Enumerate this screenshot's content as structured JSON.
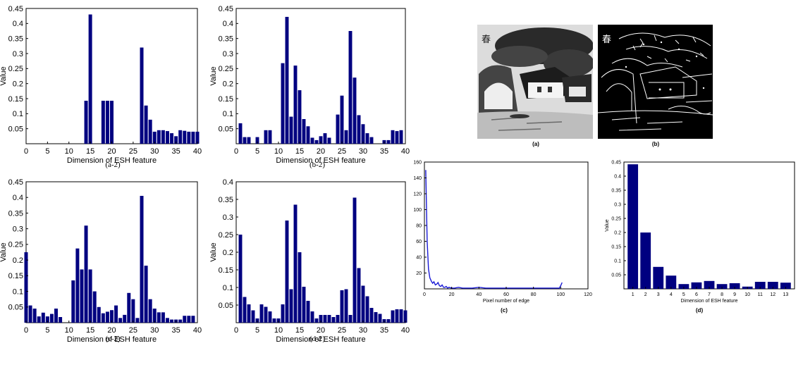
{
  "colors": {
    "bar": "#000080",
    "line": "#1a1ad6",
    "axis": "#000000"
  },
  "captions": {
    "a2": "(a-2)",
    "b2": "(b-2)",
    "c2": "(c-2)",
    "d2": "(d-2)",
    "a": "(a)",
    "b": "(b)",
    "c": "(c)",
    "d": "(d)"
  },
  "photo_a": {
    "stamp": "春"
  },
  "photo_b": {
    "stamp": "春"
  },
  "chart_data": [
    {
      "id": "a2",
      "type": "bar",
      "xlabel": "Dimension of ESH feature",
      "ylabel": "Value",
      "xlim": [
        0,
        40
      ],
      "ylim": [
        0,
        0.45
      ],
      "xticks": [
        0,
        5,
        10,
        15,
        20,
        25,
        30,
        35,
        40
      ],
      "yticks": [
        "0.05",
        "0.1",
        "0.15",
        "0.2",
        "0.25",
        "0.3",
        "0.35",
        "0.4",
        "0.45"
      ],
      "x": [
        1,
        2,
        3,
        4,
        5,
        6,
        7,
        8,
        9,
        10,
        11,
        12,
        13,
        14,
        15,
        16,
        17,
        18,
        19,
        20,
        21,
        22,
        23,
        24,
        25,
        26,
        27,
        28,
        29,
        30,
        31,
        32,
        33,
        34,
        35,
        36,
        37,
        38,
        39,
        40
      ],
      "values": [
        0,
        0,
        0,
        0,
        0,
        0,
        0,
        0,
        0,
        0,
        0,
        0,
        0,
        0.143,
        0.43,
        0,
        0,
        0.143,
        0.143,
        0.143,
        0,
        0,
        0,
        0,
        0,
        0,
        0.32,
        0.127,
        0.08,
        0.04,
        0.045,
        0.045,
        0.042,
        0.035,
        0.025,
        0.045,
        0.043,
        0.04,
        0.04,
        0.04
      ]
    },
    {
      "id": "b2",
      "type": "bar",
      "xlabel": "Dimension of ESH feature",
      "ylabel": "Value",
      "xlim": [
        0,
        40
      ],
      "ylim": [
        0,
        0.45
      ],
      "xticks": [
        0,
        5,
        10,
        15,
        20,
        25,
        30,
        35,
        40
      ],
      "yticks": [
        "0.05",
        "0.1",
        "0.15",
        "0.2",
        "0.25",
        "0.3",
        "0.35",
        "0.4",
        "0.45"
      ],
      "x": [
        1,
        2,
        3,
        4,
        5,
        6,
        7,
        8,
        9,
        10,
        11,
        12,
        13,
        14,
        15,
        16,
        17,
        18,
        19,
        20,
        21,
        22,
        23,
        24,
        25,
        26,
        27,
        28,
        29,
        30,
        31,
        32,
        33,
        34,
        35,
        36,
        37,
        38,
        39,
        40
      ],
      "values": [
        0.068,
        0.022,
        0.022,
        0,
        0.022,
        0,
        0.045,
        0.045,
        0,
        0,
        0.268,
        0.422,
        0.09,
        0.26,
        0.178,
        0.082,
        0.058,
        0.02,
        0.012,
        0.025,
        0.035,
        0.02,
        0,
        0.097,
        0.16,
        0.045,
        0.375,
        0.22,
        0.095,
        0.065,
        0.035,
        0.022,
        0,
        0,
        0.012,
        0.012,
        0.045,
        0.042,
        0.045,
        0
      ]
    },
    {
      "id": "c2",
      "type": "bar",
      "xlabel": "Dimension of ESH feature",
      "ylabel": "Value",
      "xlim": [
        0,
        40
      ],
      "ylim": [
        0,
        0.45
      ],
      "xticks": [
        0,
        5,
        10,
        15,
        20,
        25,
        30,
        35,
        40
      ],
      "yticks": [
        "0.05",
        "0.1",
        "0.15",
        "0.2",
        "0.25",
        "0.3",
        "0.35",
        "0.4",
        "0.45"
      ],
      "x": [
        0,
        1,
        2,
        3,
        4,
        5,
        6,
        7,
        8,
        9,
        10,
        11,
        12,
        13,
        14,
        15,
        16,
        17,
        18,
        19,
        20,
        21,
        22,
        23,
        24,
        25,
        26,
        27,
        28,
        29,
        30,
        31,
        32,
        33,
        34,
        35,
        36,
        37,
        38,
        39
      ],
      "values": [
        0.225,
        0.055,
        0.045,
        0.02,
        0.032,
        0.02,
        0.028,
        0.045,
        0.018,
        0,
        0,
        0.135,
        0.237,
        0.17,
        0.31,
        0.17,
        0.1,
        0.05,
        0.03,
        0.035,
        0.04,
        0.055,
        0.015,
        0.025,
        0.095,
        0.075,
        0.015,
        0.405,
        0.182,
        0.075,
        0.045,
        0.033,
        0.033,
        0.015,
        0.01,
        0.01,
        0.01,
        0.022,
        0.022,
        0.022
      ]
    },
    {
      "id": "d2",
      "type": "bar",
      "xlabel": "Dimension of ESH feature",
      "ylabel": "Value",
      "xlim": [
        0,
        40
      ],
      "ylim": [
        0,
        0.4
      ],
      "xticks": [
        0,
        5,
        10,
        15,
        20,
        25,
        30,
        35,
        40
      ],
      "yticks": [
        "0.05",
        "0.1",
        "0.15",
        "0.2",
        "0.25",
        "0.3",
        "0.35",
        "0.4"
      ],
      "x": [
        1,
        2,
        3,
        4,
        5,
        6,
        7,
        8,
        9,
        10,
        11,
        12,
        13,
        14,
        15,
        16,
        17,
        18,
        19,
        20,
        21,
        22,
        23,
        24,
        25,
        26,
        27,
        28,
        29,
        30,
        31,
        32,
        33,
        34,
        35,
        36,
        37,
        38,
        39,
        40
      ],
      "values": [
        0.25,
        0.073,
        0.052,
        0.035,
        0.012,
        0.052,
        0.045,
        0.032,
        0.012,
        0.012,
        0.052,
        0.29,
        0.095,
        0.335,
        0.2,
        0.102,
        0.062,
        0.032,
        0.012,
        0.022,
        0.022,
        0.022,
        0.016,
        0.022,
        0.092,
        0.095,
        0.022,
        0.355,
        0.155,
        0.105,
        0.075,
        0.042,
        0.03,
        0.025,
        0.01,
        0.01,
        0.035,
        0.038,
        0.038,
        0.035
      ]
    },
    {
      "id": "c",
      "type": "line",
      "xlabel": "Pixel number of edge",
      "ylabel": "",
      "xlim": [
        0,
        120
      ],
      "ylim": [
        0,
        160
      ],
      "xticks": [
        0,
        20,
        40,
        60,
        80,
        100,
        120
      ],
      "yticks": [
        "20",
        "40",
        "60",
        "80",
        "100",
        "120",
        "140",
        "160"
      ],
      "x": [
        1,
        2,
        3,
        4,
        5,
        6,
        7,
        8,
        9,
        10,
        11,
        12,
        13,
        14,
        15,
        16,
        17,
        18,
        20,
        22,
        25,
        28,
        30,
        35,
        40,
        45,
        50,
        60,
        70,
        80,
        90,
        99,
        100,
        101
      ],
      "values": [
        150,
        60,
        25,
        14,
        10,
        7,
        9,
        5,
        6,
        8,
        4,
        3,
        5,
        2,
        2,
        3,
        1,
        2,
        1,
        1,
        2,
        1,
        1,
        1,
        2,
        1,
        1,
        1,
        1,
        1,
        1,
        1,
        4,
        8
      ]
    },
    {
      "id": "d",
      "type": "bar",
      "xlabel": "Dimension of ESH feature",
      "ylabel": "Value",
      "xlim": [
        0.3,
        13.7
      ],
      "ylim": [
        0,
        0.45
      ],
      "xticks": [
        1,
        2,
        3,
        4,
        5,
        6,
        7,
        8,
        9,
        10,
        11,
        12,
        13
      ],
      "yticks": [
        "0.05",
        "0.1",
        "0.15",
        "0.2",
        "0.25",
        "0.3",
        "0.35",
        "0.4",
        "0.45"
      ],
      "x": [
        1,
        2,
        3,
        4,
        5,
        6,
        7,
        8,
        9,
        10,
        11,
        12,
        13
      ],
      "values": [
        0.442,
        0.2,
        0.078,
        0.047,
        0.017,
        0.023,
        0.028,
        0.017,
        0.02,
        0.008,
        0.025,
        0.025,
        0.022
      ]
    }
  ]
}
